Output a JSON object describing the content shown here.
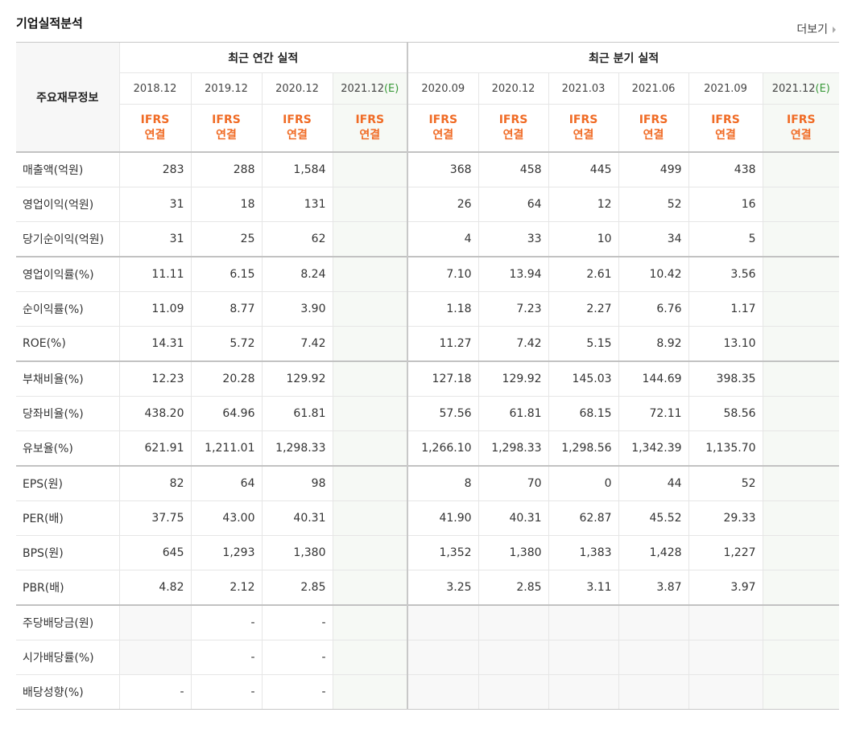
{
  "header": {
    "title": "기업실적분석",
    "more": "더보기"
  },
  "table": {
    "label": "주요재무정보",
    "groups": [
      {
        "label": "최근 연간 실적",
        "span": 4
      },
      {
        "label": "최근 분기 실적",
        "span": 6
      }
    ],
    "columns": [
      {
        "period": "2018.12",
        "std": "IFRS",
        "consol": "연결"
      },
      {
        "period": "2019.12",
        "std": "IFRS",
        "consol": "연결"
      },
      {
        "period": "2020.12",
        "std": "IFRS",
        "consol": "연결"
      },
      {
        "period": "2021.12",
        "estimate": "(E)",
        "std": "IFRS",
        "consol": "연결"
      },
      {
        "period": "2020.09",
        "std": "IFRS",
        "consol": "연결"
      },
      {
        "period": "2020.12",
        "std": "IFRS",
        "consol": "연결"
      },
      {
        "period": "2021.03",
        "std": "IFRS",
        "consol": "연결"
      },
      {
        "period": "2021.06",
        "std": "IFRS",
        "consol": "연결"
      },
      {
        "period": "2021.09",
        "std": "IFRS",
        "consol": "연결"
      },
      {
        "period": "2021.12",
        "estimate": "(E)",
        "std": "IFRS",
        "consol": "연결"
      }
    ],
    "sections": [
      [
        {
          "label": "매출액(억원)",
          "values": [
            "283",
            "288",
            "1,584",
            null,
            "368",
            "458",
            "445",
            "499",
            "438",
            null
          ]
        },
        {
          "label": "영업이익(억원)",
          "values": [
            "31",
            "18",
            "131",
            null,
            "26",
            "64",
            "12",
            "52",
            "16",
            null
          ]
        },
        {
          "label": "당기순이익(억원)",
          "values": [
            "31",
            "25",
            "62",
            null,
            "4",
            "33",
            "10",
            "34",
            "5",
            null
          ]
        }
      ],
      [
        {
          "label": "영업이익률(%)",
          "values": [
            "11.11",
            "6.15",
            "8.24",
            null,
            "7.10",
            "13.94",
            "2.61",
            "10.42",
            "3.56",
            null
          ]
        },
        {
          "label": "순이익률(%)",
          "values": [
            "11.09",
            "8.77",
            "3.90",
            null,
            "1.18",
            "7.23",
            "2.27",
            "6.76",
            "1.17",
            null
          ]
        },
        {
          "label": "ROE(%)",
          "values": [
            "14.31",
            "5.72",
            "7.42",
            null,
            "11.27",
            "7.42",
            "5.15",
            "8.92",
            "13.10",
            null
          ]
        }
      ],
      [
        {
          "label": "부채비율(%)",
          "values": [
            "12.23",
            "20.28",
            "129.92",
            null,
            "127.18",
            "129.92",
            "145.03",
            "144.69",
            "398.35",
            null
          ]
        },
        {
          "label": "당좌비율(%)",
          "values": [
            "438.20",
            "64.96",
            "61.81",
            null,
            "57.56",
            "61.81",
            "68.15",
            "72.11",
            "58.56",
            null
          ]
        },
        {
          "label": "유보율(%)",
          "values": [
            "621.91",
            "1,211.01",
            "1,298.33",
            null,
            "1,266.10",
            "1,298.33",
            "1,298.56",
            "1,342.39",
            "1,135.70",
            null
          ]
        }
      ],
      [
        {
          "label": "EPS(원)",
          "values": [
            "82",
            "64",
            "98",
            null,
            "8",
            "70",
            "0",
            "44",
            "52",
            null
          ]
        },
        {
          "label": "PER(배)",
          "values": [
            "37.75",
            "43.00",
            "40.31",
            null,
            "41.90",
            "40.31",
            "62.87",
            "45.52",
            "29.33",
            null
          ]
        },
        {
          "label": "BPS(원)",
          "values": [
            "645",
            "1,293",
            "1,380",
            null,
            "1,352",
            "1,380",
            "1,383",
            "1,428",
            "1,227",
            null
          ]
        },
        {
          "label": "PBR(배)",
          "values": [
            "4.82",
            "2.12",
            "2.85",
            null,
            "3.25",
            "2.85",
            "3.11",
            "3.87",
            "3.97",
            null
          ]
        }
      ],
      [
        {
          "label": "주당배당금(원)",
          "values": [
            null,
            "-",
            "-",
            null,
            null,
            null,
            null,
            null,
            null,
            null
          ]
        },
        {
          "label": "시가배당률(%)",
          "values": [
            null,
            "-",
            "-",
            null,
            null,
            null,
            null,
            null,
            null,
            null
          ]
        },
        {
          "label": "배당성향(%)",
          "values": [
            "-",
            "-",
            "-",
            null,
            null,
            null,
            null,
            null,
            null,
            null
          ]
        }
      ]
    ]
  }
}
